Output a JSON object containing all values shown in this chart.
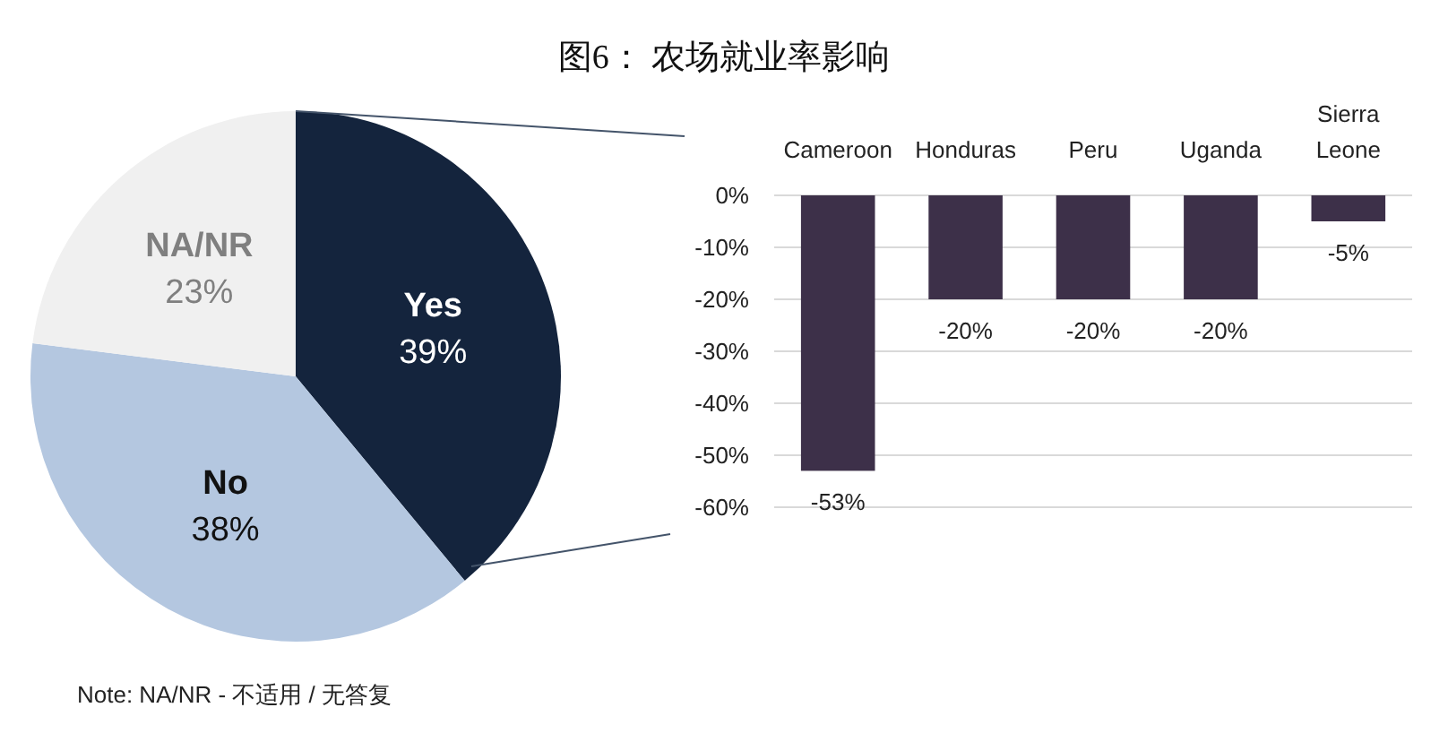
{
  "chart_data": [
    {
      "type": "pie",
      "title": "图6：  农场就业率影响",
      "categories": [
        "Yes",
        "No",
        "NA/NR"
      ],
      "values": [
        39,
        38,
        23
      ],
      "colors": [
        "#14243d",
        "#b4c7e0",
        "#f0f0f0"
      ],
      "value_labels": [
        "39%",
        "38%",
        "23%"
      ],
      "annotations": [
        "Note: NA/NR - 不适用 / 无答复"
      ]
    },
    {
      "type": "bar",
      "categories": [
        "Cameroon",
        "Honduras",
        "Peru",
        "Uganda",
        "Sierra Leone"
      ],
      "values": [
        -53,
        -20,
        -20,
        -20,
        -5
      ],
      "color": "#3d3049",
      "value_labels": [
        "-53%",
        "-20%",
        "-20%",
        "-20%",
        "-5%"
      ],
      "ylim": [
        -60,
        0
      ],
      "yticks": [
        {
          "value": 0,
          "label": "0%"
        },
        {
          "value": -10,
          "label": "-10%"
        },
        {
          "value": -20,
          "label": "-20%"
        },
        {
          "value": -30,
          "label": "-30%"
        },
        {
          "value": -40,
          "label": "-40%"
        },
        {
          "value": -50,
          "label": "-50%"
        },
        {
          "value": -60,
          "label": "-60%"
        }
      ],
      "grid": "y"
    }
  ]
}
